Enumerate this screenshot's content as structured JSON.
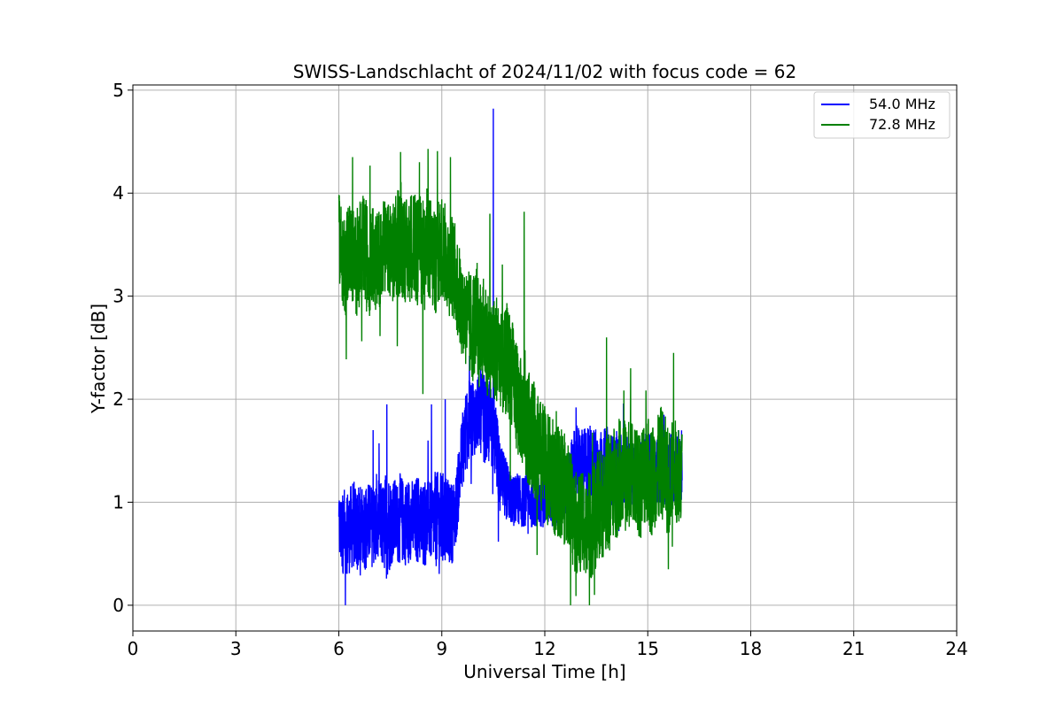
{
  "chart_data": {
    "type": "line",
    "title": "SWISS-Landschlacht of 2024/11/02 with focus code = 62",
    "xlabel": "Universal Time [h]",
    "ylabel": "Y-factor [dB]",
    "xlim": [
      0,
      24
    ],
    "ylim": [
      -0.25,
      5.05
    ],
    "xticks": [
      0,
      3,
      6,
      9,
      12,
      15,
      18,
      21,
      24
    ],
    "yticks": [
      0,
      1,
      2,
      3,
      4,
      5
    ],
    "grid": true,
    "legend_position": "top-right",
    "series": [
      {
        "name": "54.0 MHz",
        "color": "#0000ff",
        "x": [
          6.0,
          6.1,
          6.2,
          6.3,
          6.4,
          6.5,
          6.6,
          6.7,
          6.8,
          6.9,
          7.0,
          7.1,
          7.2,
          7.3,
          7.4,
          7.5,
          7.6,
          7.7,
          7.8,
          7.9,
          8.0,
          8.1,
          8.2,
          8.3,
          8.4,
          8.5,
          8.6,
          8.7,
          8.8,
          8.9,
          9.0,
          9.1,
          9.2,
          9.3,
          9.4,
          9.5,
          9.6,
          9.7,
          9.8,
          9.9,
          10.0,
          10.1,
          10.2,
          10.3,
          10.4,
          10.5,
          10.6,
          10.7,
          10.8,
          10.9,
          11.0,
          11.1,
          11.2,
          11.3,
          11.4,
          11.5,
          11.6,
          11.7,
          11.8,
          11.9,
          12.0,
          12.1,
          12.2,
          12.3,
          12.4,
          12.5,
          12.6,
          12.7,
          12.8,
          12.9,
          13.0,
          13.1,
          13.2,
          13.3,
          13.4,
          13.5,
          13.6,
          13.7,
          13.8,
          13.9,
          14.0,
          14.1,
          14.2,
          14.3,
          14.4,
          14.5,
          14.6,
          14.7,
          14.8,
          14.9,
          15.0,
          15.1,
          15.2,
          15.3,
          15.4,
          15.5,
          15.6,
          15.7,
          15.8,
          15.9,
          16.0
        ],
        "y": [
          0.75,
          0.7,
          0.75,
          0.7,
          0.8,
          0.75,
          0.7,
          0.8,
          0.75,
          0.8,
          0.75,
          0.8,
          0.8,
          0.75,
          0.8,
          0.8,
          0.85,
          0.8,
          0.85,
          0.8,
          0.8,
          0.85,
          0.8,
          0.85,
          0.8,
          0.8,
          0.85,
          0.8,
          0.85,
          0.8,
          0.8,
          0.85,
          0.8,
          0.8,
          0.9,
          1.2,
          1.5,
          1.7,
          1.8,
          1.85,
          1.8,
          1.9,
          1.85,
          1.75,
          1.8,
          1.7,
          1.5,
          1.2,
          1.2,
          1.1,
          1.05,
          1.0,
          1.05,
          1.0,
          1.0,
          1.05,
          1.0,
          1.0,
          1.05,
          1.0,
          1.0,
          1.05,
          1.0,
          1.0,
          1.05,
          1.05,
          1.1,
          1.15,
          1.3,
          1.4,
          1.4,
          1.35,
          1.35,
          1.4,
          1.35,
          1.4,
          1.3,
          1.35,
          1.4,
          1.35,
          1.3,
          1.35,
          1.3,
          1.35,
          1.3,
          1.3,
          1.35,
          1.3,
          1.3,
          1.35,
          1.3,
          1.35,
          1.3,
          1.3,
          1.35,
          1.3,
          1.3,
          1.35,
          1.3,
          1.35,
          1.35
        ],
        "spread": [
          0.35,
          0.4,
          0.45,
          0.4,
          0.45,
          0.4,
          0.45,
          0.4,
          0.45,
          0.4,
          0.4,
          0.45,
          0.4,
          0.45,
          0.55,
          0.45,
          0.4,
          0.4,
          0.45,
          0.4,
          0.45,
          0.4,
          0.4,
          0.45,
          0.4,
          0.45,
          0.4,
          0.4,
          0.45,
          0.5,
          0.5,
          0.45,
          0.4,
          0.4,
          0.35,
          0.35,
          0.4,
          0.45,
          0.4,
          0.4,
          0.35,
          0.4,
          0.45,
          0.4,
          0.45,
          0.4,
          0.4,
          0.35,
          0.3,
          0.3,
          0.25,
          0.25,
          0.25,
          0.25,
          0.25,
          0.25,
          0.25,
          0.25,
          0.25,
          0.25,
          0.25,
          0.25,
          0.25,
          0.25,
          0.25,
          0.25,
          0.25,
          0.3,
          0.35,
          0.35,
          0.35,
          0.35,
          0.4,
          0.4,
          0.35,
          0.35,
          0.4,
          0.35,
          0.35,
          0.35,
          0.35,
          0.35,
          0.35,
          0.35,
          0.35,
          0.35,
          0.35,
          0.35,
          0.35,
          0.35,
          0.35,
          0.35,
          0.35,
          0.35,
          0.35,
          0.35,
          0.35,
          0.35,
          0.35,
          0.35,
          0.35
        ],
        "spikes": [
          [
            6.19,
            0.0
          ],
          [
            7.0,
            1.7
          ],
          [
            7.4,
            1.95
          ],
          [
            8.7,
            1.95
          ],
          [
            9.1,
            2.0
          ],
          [
            10.3,
            2.5
          ],
          [
            10.5,
            4.82
          ],
          [
            12.8,
            0.85
          ]
        ]
      },
      {
        "name": "72.8 MHz",
        "color": "#008000",
        "x": [
          6.0,
          6.1,
          6.2,
          6.3,
          6.4,
          6.5,
          6.6,
          6.7,
          6.8,
          6.9,
          7.0,
          7.1,
          7.2,
          7.3,
          7.4,
          7.5,
          7.6,
          7.7,
          7.8,
          7.9,
          8.0,
          8.1,
          8.2,
          8.3,
          8.4,
          8.5,
          8.6,
          8.7,
          8.8,
          8.9,
          9.0,
          9.1,
          9.2,
          9.3,
          9.4,
          9.5,
          9.6,
          9.7,
          9.8,
          9.9,
          10.0,
          10.1,
          10.2,
          10.3,
          10.4,
          10.5,
          10.6,
          10.7,
          10.8,
          10.9,
          11.0,
          11.1,
          11.2,
          11.3,
          11.4,
          11.5,
          11.6,
          11.7,
          11.8,
          11.9,
          12.0,
          12.1,
          12.2,
          12.3,
          12.4,
          12.5,
          12.6,
          12.7,
          12.8,
          12.9,
          13.0,
          13.1,
          13.2,
          13.3,
          13.4,
          13.5,
          13.6,
          13.7,
          13.8,
          13.9,
          14.0,
          14.1,
          14.2,
          14.3,
          14.4,
          14.5,
          14.6,
          14.7,
          14.8,
          14.9,
          15.0,
          15.1,
          15.2,
          15.3,
          15.4,
          15.5,
          15.6,
          15.7,
          15.8,
          15.9,
          16.0
        ],
        "y": [
          3.6,
          3.4,
          3.3,
          3.5,
          3.4,
          3.3,
          3.4,
          3.5,
          3.4,
          3.3,
          3.4,
          3.3,
          3.4,
          3.5,
          3.4,
          3.5,
          3.4,
          3.5,
          3.6,
          3.5,
          3.4,
          3.5,
          3.5,
          3.4,
          3.5,
          3.4,
          3.5,
          3.4,
          3.3,
          3.4,
          3.5,
          3.4,
          3.3,
          3.3,
          3.2,
          3.0,
          2.9,
          2.8,
          2.7,
          2.7,
          2.8,
          2.6,
          2.7,
          2.6,
          2.5,
          2.5,
          2.5,
          2.4,
          2.3,
          2.4,
          2.3,
          2.2,
          2.0,
          1.9,
          1.8,
          1.7,
          1.7,
          1.6,
          1.5,
          1.4,
          1.4,
          1.3,
          1.3,
          1.2,
          1.2,
          1.2,
          1.1,
          1.1,
          0.9,
          0.8,
          0.8,
          0.8,
          0.7,
          0.8,
          0.8,
          0.9,
          1.0,
          1.0,
          1.1,
          1.1,
          1.2,
          1.2,
          1.3,
          1.3,
          1.2,
          1.3,
          1.3,
          1.2,
          1.2,
          1.3,
          1.3,
          1.2,
          1.3,
          1.3,
          1.4,
          1.3,
          1.2,
          1.3,
          1.3,
          1.3,
          1.3
        ],
        "spread": [
          0.4,
          0.5,
          0.5,
          0.45,
          0.5,
          0.55,
          0.5,
          0.5,
          0.55,
          0.5,
          0.5,
          0.5,
          0.5,
          0.5,
          0.45,
          0.5,
          0.5,
          0.55,
          0.6,
          0.55,
          0.5,
          0.55,
          0.5,
          0.55,
          0.5,
          0.55,
          0.5,
          0.55,
          0.5,
          0.55,
          0.5,
          0.5,
          0.5,
          0.5,
          0.5,
          0.5,
          0.5,
          0.5,
          0.55,
          0.55,
          0.5,
          0.55,
          0.5,
          0.55,
          0.5,
          0.5,
          0.55,
          0.5,
          0.5,
          0.55,
          0.55,
          0.5,
          0.55,
          0.5,
          0.55,
          0.55,
          0.6,
          0.55,
          0.55,
          0.6,
          0.55,
          0.55,
          0.55,
          0.55,
          0.55,
          0.55,
          0.55,
          0.5,
          0.55,
          0.5,
          0.5,
          0.5,
          0.5,
          0.55,
          0.55,
          0.55,
          0.55,
          0.55,
          0.55,
          0.6,
          0.55,
          0.55,
          0.55,
          0.55,
          0.55,
          0.55,
          0.55,
          0.55,
          0.55,
          0.55,
          0.55,
          0.55,
          0.55,
          0.55,
          0.55,
          0.55,
          0.55,
          0.5,
          0.5,
          0.5,
          0.45
        ],
        "spikes": [
          [
            6.0,
            3.95
          ],
          [
            6.4,
            4.35
          ],
          [
            7.8,
            4.4
          ],
          [
            8.35,
            4.3
          ],
          [
            8.45,
            2.05
          ],
          [
            8.6,
            4.43
          ],
          [
            9.25,
            4.35
          ],
          [
            10.4,
            3.8
          ],
          [
            11.4,
            3.82
          ],
          [
            12.75,
            0.0
          ],
          [
            13.3,
            0.0
          ],
          [
            13.45,
            0.1
          ],
          [
            13.8,
            2.6
          ],
          [
            14.5,
            2.3
          ],
          [
            15.75,
            2.45
          ],
          [
            15.6,
            0.35
          ]
        ]
      }
    ]
  }
}
